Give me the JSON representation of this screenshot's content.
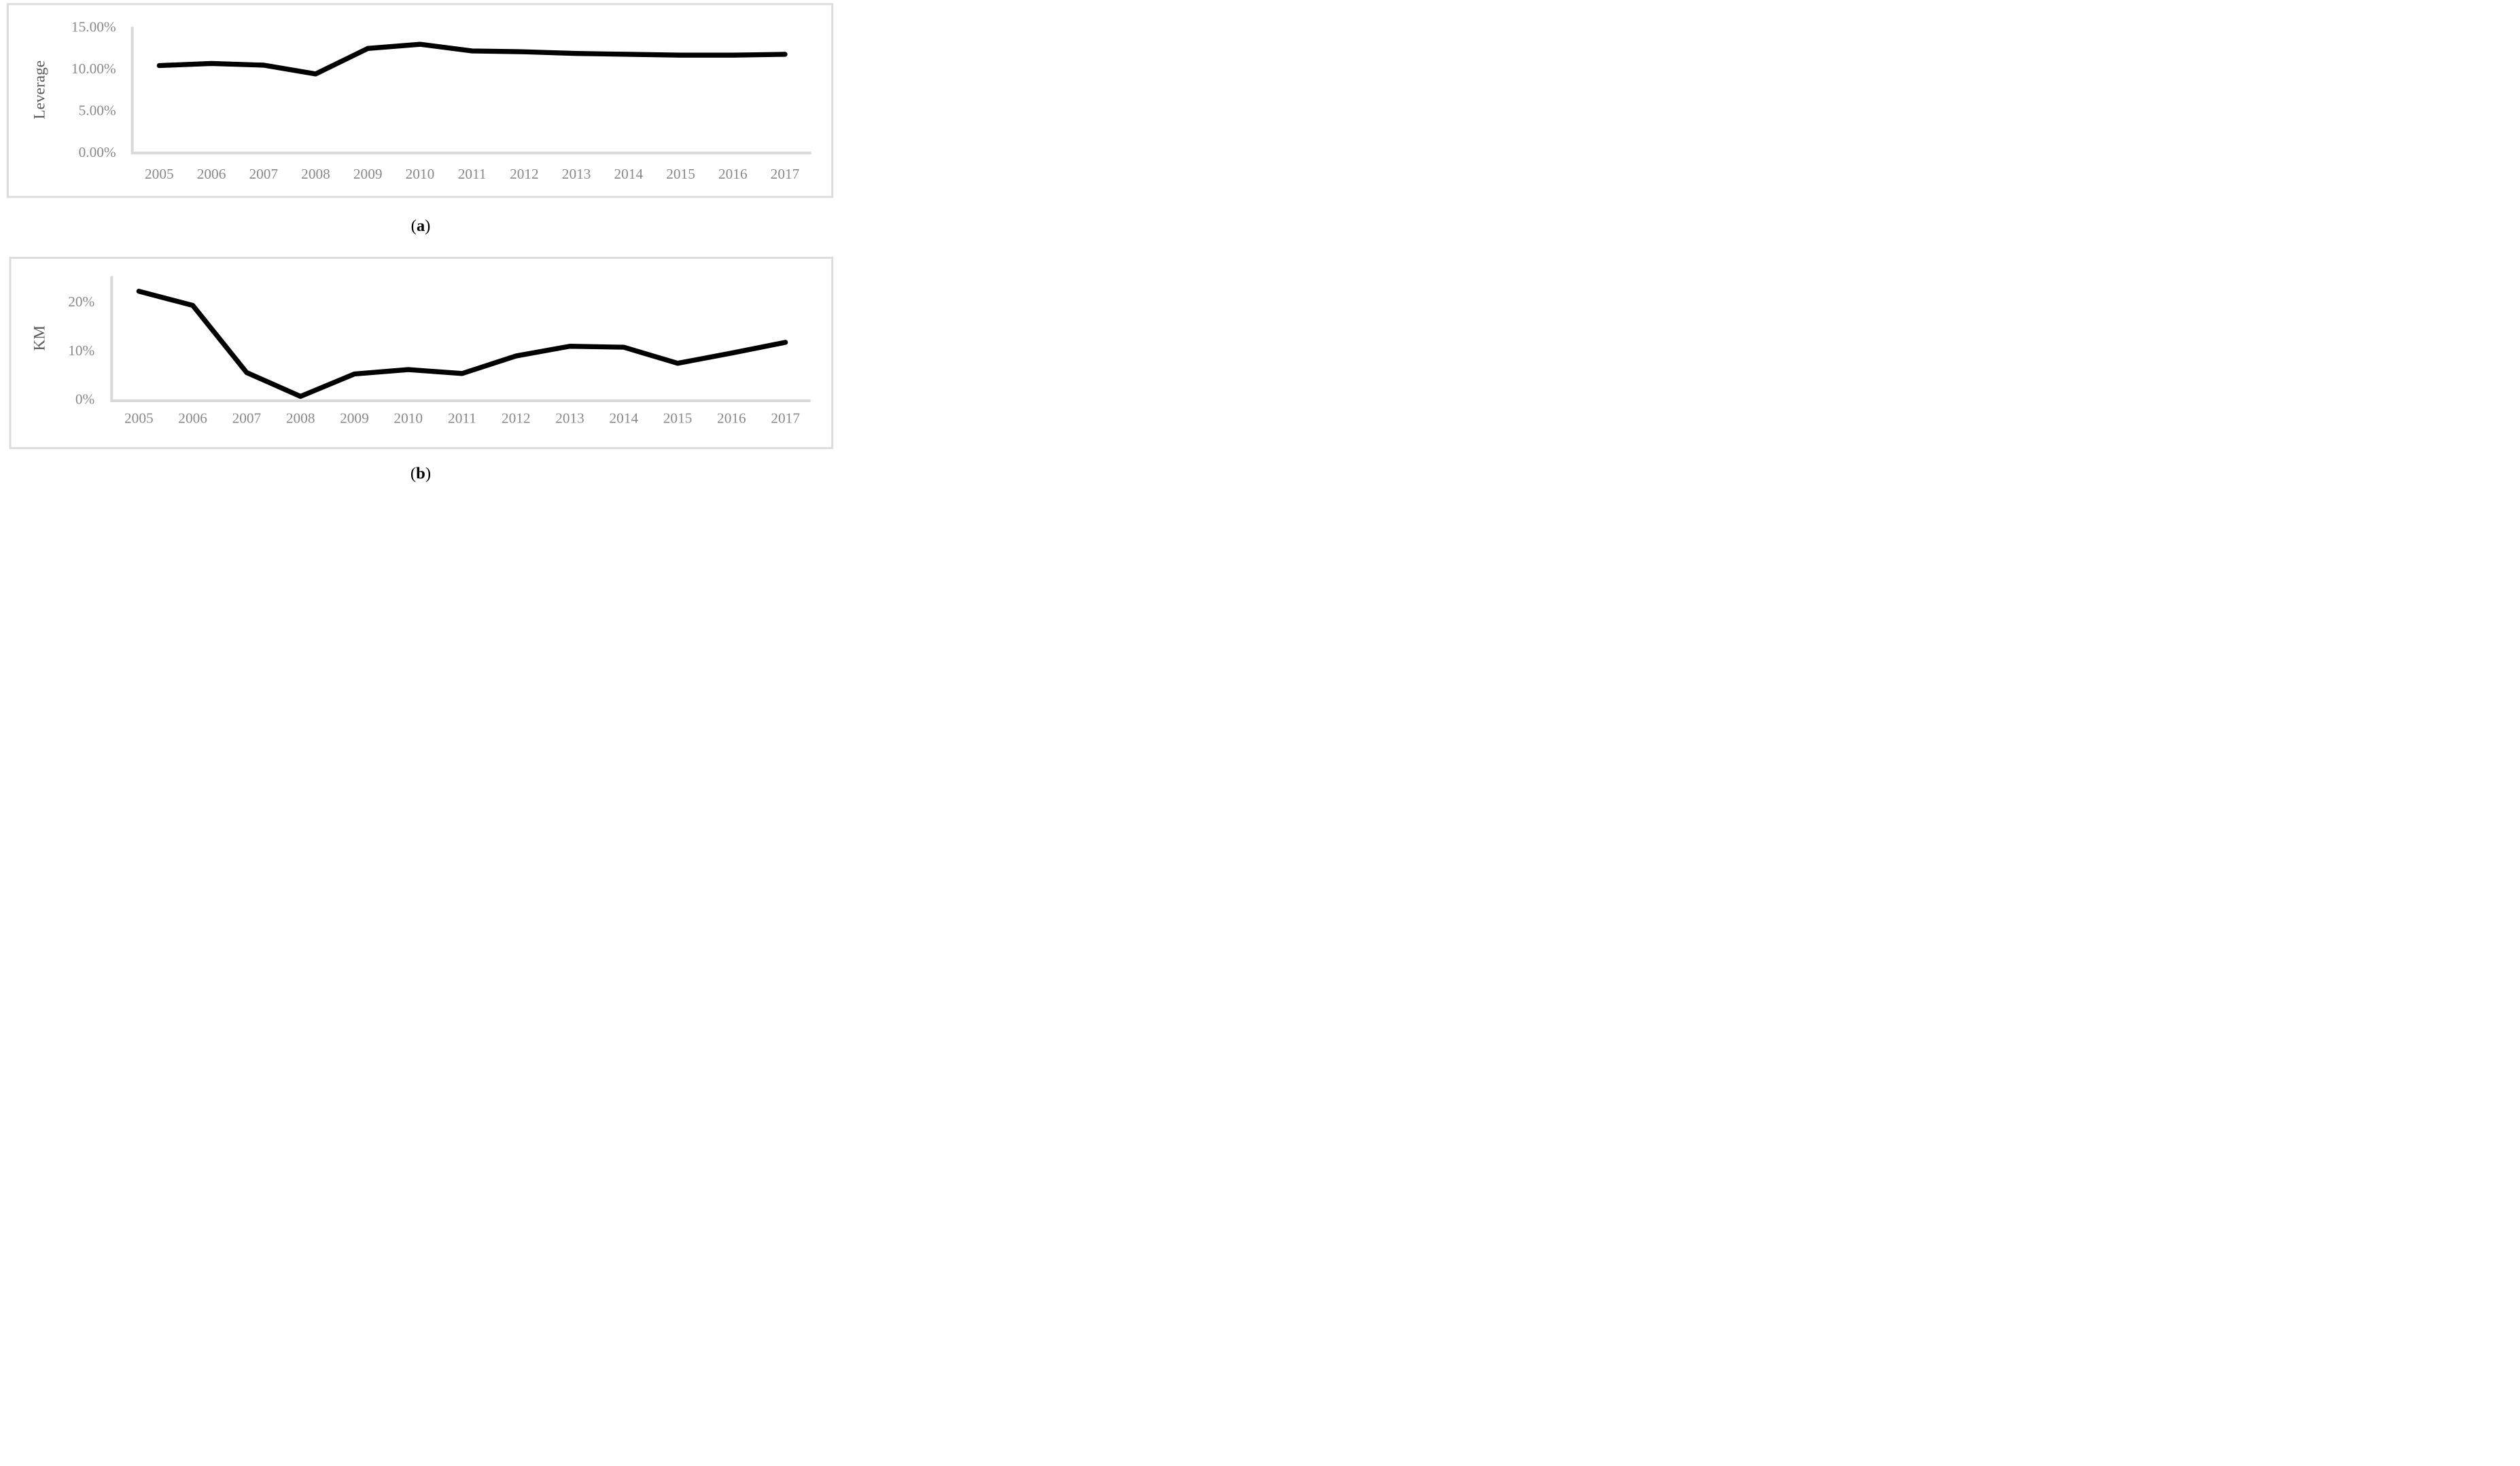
{
  "colors": {
    "line": "#000000",
    "axis_line": "#d9d9d9",
    "panel_border": "#dcdcdc",
    "tick_label": "#898989",
    "axis_title": "#5b5b5b",
    "caption": "#000000",
    "background": "#ffffff"
  },
  "captions": {
    "open": "(",
    "a": "a",
    "b": "b",
    "close": ")"
  },
  "chart_data": [
    {
      "id": "a",
      "type": "line",
      "title": "",
      "xlabel": "",
      "ylabel": "Leverage",
      "categories": [
        "2005",
        "2006",
        "2007",
        "2008",
        "2009",
        "2010",
        "2011",
        "2012",
        "2013",
        "2014",
        "2015",
        "2016",
        "2017"
      ],
      "values": [
        10.35,
        10.6,
        10.4,
        9.35,
        12.4,
        12.9,
        12.1,
        12.0,
        11.8,
        11.7,
        11.6,
        11.6,
        11.7
      ],
      "y_ticks": [
        "15.00%",
        "10.00%",
        "5.00%",
        "0.00%"
      ],
      "y_tick_values": [
        15,
        10,
        5,
        0
      ],
      "ylim": [
        0,
        15
      ],
      "grid": false,
      "legend": false,
      "series_name": "Leverage",
      "units": "percent"
    },
    {
      "id": "b",
      "type": "line",
      "title": "",
      "xlabel": "",
      "ylabel": "KM",
      "categories": [
        "2005",
        "2006",
        "2007",
        "2008",
        "2009",
        "2010",
        "2011",
        "2012",
        "2013",
        "2014",
        "2015",
        "2016",
        "2017"
      ],
      "values": [
        22.1,
        19.2,
        5.4,
        0.5,
        5.1,
        6.0,
        5.2,
        8.8,
        10.8,
        10.6,
        7.3,
        9.4,
        11.6
      ],
      "y_ticks": [
        "20%",
        "10%",
        "0%"
      ],
      "y_tick_values": [
        20,
        10,
        0
      ],
      "ylim": [
        0,
        25.2
      ],
      "grid": false,
      "legend": false,
      "series_name": "KM",
      "units": "percent"
    }
  ]
}
